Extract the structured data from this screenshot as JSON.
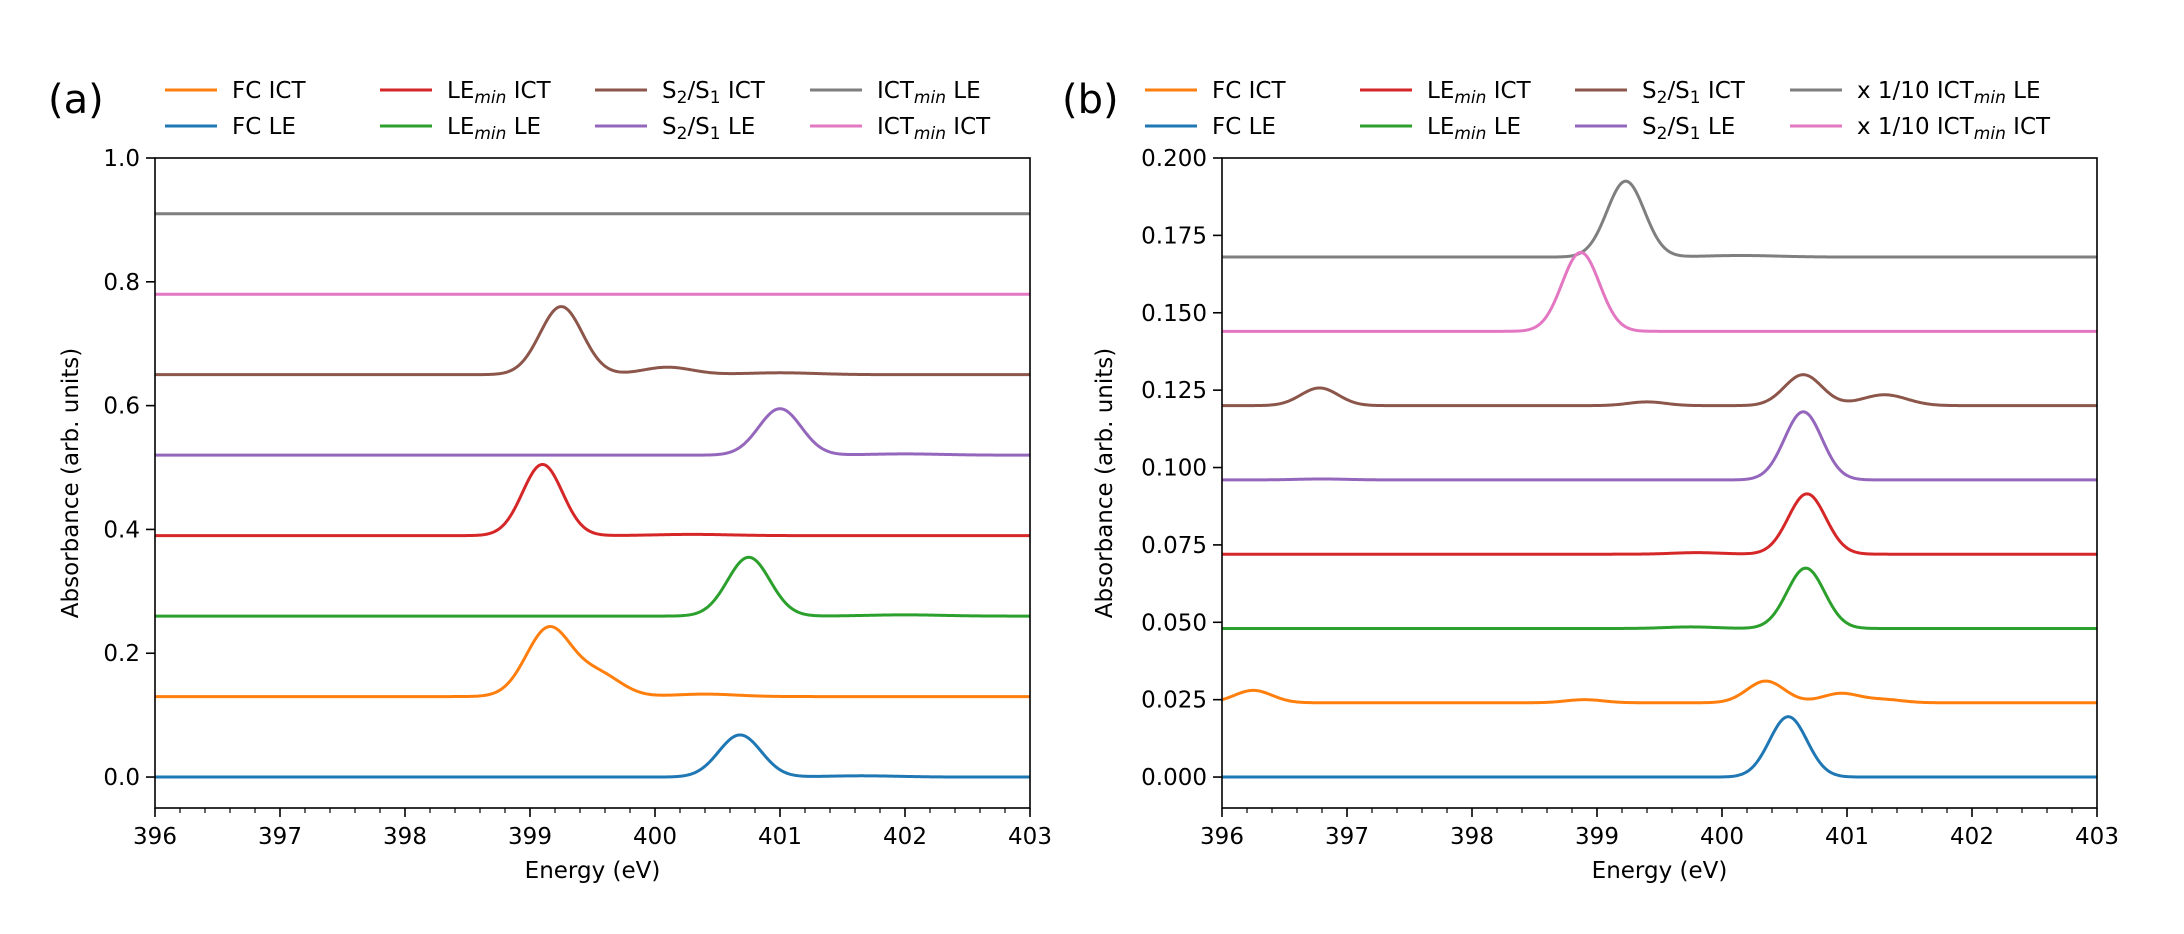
{
  "figure": {
    "panels": [
      "a",
      "b"
    ]
  },
  "chart_data": [
    {
      "type": "line",
      "panel_label": "(a)",
      "xlabel": "Energy (eV)",
      "ylabel": "Absorbance (arb. units)",
      "xlim": [
        396,
        403
      ],
      "ylim": [
        -0.05,
        1.0
      ],
      "xticks": [
        396,
        397,
        398,
        399,
        400,
        401,
        402,
        403
      ],
      "xtick_labels": [
        "396",
        "397",
        "398",
        "399",
        "400",
        "401",
        "402",
        "403"
      ],
      "yticks": [
        0.0,
        0.2,
        0.4,
        0.6,
        0.8,
        1.0
      ],
      "ytick_labels": [
        "0.0",
        "0.2",
        "0.4",
        "0.6",
        "0.8",
        "1.0"
      ],
      "legend": {
        "placement": "top",
        "columns": 4
      },
      "series": [
        {
          "name": "FC ICT",
          "label_parts": [
            [
              "FC ICT",
              ""
            ]
          ],
          "color": "#ff7f0e",
          "baseline": 0.13,
          "peaks": [
            [
              399.15,
              0.11,
              0.18
            ],
            [
              399.55,
              0.035,
              0.18
            ],
            [
              400.4,
              0.004,
              0.25
            ]
          ]
        },
        {
          "name": "FC LE",
          "label_parts": [
            [
              "FC LE",
              ""
            ]
          ],
          "color": "#1f77b4",
          "baseline": 0.0,
          "peaks": [
            [
              400.68,
              0.068,
              0.17
            ],
            [
              401.65,
              0.002,
              0.3
            ]
          ]
        },
        {
          "name": "LEmin ICT",
          "label_parts": [
            [
              "LE",
              ""
            ],
            [
              "min",
              "sub-i"
            ],
            [
              " ICT",
              ""
            ]
          ],
          "color": "#d62728",
          "baseline": 0.39,
          "peaks": [
            [
              399.1,
              0.115,
              0.16
            ],
            [
              400.3,
              0.002,
              0.3
            ]
          ]
        },
        {
          "name": "LEmin LE",
          "label_parts": [
            [
              "LE",
              ""
            ],
            [
              "min",
              "sub-i"
            ],
            [
              " LE",
              ""
            ]
          ],
          "color": "#2ca02c",
          "baseline": 0.26,
          "peaks": [
            [
              400.75,
              0.095,
              0.17
            ],
            [
              402.0,
              0.002,
              0.3
            ]
          ]
        },
        {
          "name": "S2/S1 ICT",
          "label_parts": [
            [
              "S",
              ""
            ],
            [
              "2",
              "sub"
            ],
            [
              "/S",
              ""
            ],
            [
              "1",
              "sub"
            ],
            [
              " ICT",
              ""
            ]
          ],
          "color": "#8c564b",
          "baseline": 0.65,
          "peaks": [
            [
              399.25,
              0.11,
              0.17
            ],
            [
              400.1,
              0.012,
              0.2
            ],
            [
              401.0,
              0.003,
              0.3
            ]
          ]
        },
        {
          "name": "S2/S1 LE",
          "label_parts": [
            [
              "S",
              ""
            ],
            [
              "2",
              "sub"
            ],
            [
              "/S",
              ""
            ],
            [
              "1",
              "sub"
            ],
            [
              " LE",
              ""
            ]
          ],
          "color": "#9467bd",
          "baseline": 0.52,
          "peaks": [
            [
              401.0,
              0.075,
              0.17
            ],
            [
              402.0,
              0.002,
              0.3
            ]
          ]
        },
        {
          "name": "ICTmin LE",
          "label_parts": [
            [
              "ICT",
              ""
            ],
            [
              "min",
              "sub-i"
            ],
            [
              " LE",
              ""
            ]
          ],
          "color": "#7f7f7f",
          "baseline": 0.91,
          "peaks": []
        },
        {
          "name": "ICTmin ICT",
          "label_parts": [
            [
              "ICT",
              ""
            ],
            [
              "min",
              "sub-i"
            ],
            [
              " ICT",
              ""
            ]
          ],
          "color": "#e377c2",
          "baseline": 0.78,
          "peaks": []
        }
      ]
    },
    {
      "type": "line",
      "panel_label": "(b)",
      "xlabel": "Energy (eV)",
      "ylabel": "Absorbance (arb. units)",
      "xlim": [
        396,
        403
      ],
      "ylim": [
        -0.01,
        0.2
      ],
      "xticks": [
        396,
        397,
        398,
        399,
        400,
        401,
        402,
        403
      ],
      "xtick_labels": [
        "396",
        "397",
        "398",
        "399",
        "400",
        "401",
        "402",
        "403"
      ],
      "yticks": [
        0.0,
        0.025,
        0.05,
        0.075,
        0.1,
        0.125,
        0.15,
        0.175,
        0.2
      ],
      "ytick_labels": [
        "0.000",
        "0.025",
        "0.050",
        "0.075",
        "0.100",
        "0.125",
        "0.150",
        "0.175",
        "0.200"
      ],
      "legend": {
        "placement": "top",
        "columns": 4
      },
      "series": [
        {
          "name": "FC ICT",
          "label_parts": [
            [
              "FC ICT",
              ""
            ]
          ],
          "color": "#ff7f0e",
          "baseline": 0.024,
          "peaks": [
            [
              396.25,
              0.004,
              0.15
            ],
            [
              398.9,
              0.001,
              0.15
            ],
            [
              400.35,
              0.007,
              0.15
            ],
            [
              400.95,
              0.003,
              0.15
            ],
            [
              401.3,
              0.001,
              0.15
            ]
          ]
        },
        {
          "name": "FC LE",
          "label_parts": [
            [
              "FC LE",
              ""
            ]
          ],
          "color": "#1f77b4",
          "baseline": 0.0,
          "peaks": [
            [
              400.53,
              0.0195,
              0.15
            ]
          ]
        },
        {
          "name": "LEmin ICT",
          "label_parts": [
            [
              "LE",
              ""
            ],
            [
              "min",
              "sub-i"
            ],
            [
              " ICT",
              ""
            ]
          ],
          "color": "#d62728",
          "baseline": 0.072,
          "peaks": [
            [
              400.68,
              0.0195,
              0.15
            ],
            [
              399.8,
              0.0005,
              0.2
            ]
          ]
        },
        {
          "name": "LEmin LE",
          "label_parts": [
            [
              "LE",
              ""
            ],
            [
              "min",
              "sub-i"
            ],
            [
              " LE",
              ""
            ]
          ],
          "color": "#2ca02c",
          "baseline": 0.048,
          "peaks": [
            [
              400.67,
              0.0195,
              0.15
            ],
            [
              399.75,
              0.0005,
              0.2
            ]
          ]
        },
        {
          "name": "S2/S1 ICT",
          "label_parts": [
            [
              "S",
              ""
            ],
            [
              "2",
              "sub"
            ],
            [
              "/S",
              ""
            ],
            [
              "1",
              "sub"
            ],
            [
              " ICT",
              ""
            ]
          ],
          "color": "#8c564b",
          "baseline": 0.12,
          "peaks": [
            [
              396.78,
              0.0057,
              0.15
            ],
            [
              399.4,
              0.0012,
              0.15
            ],
            [
              400.65,
              0.01,
              0.15
            ],
            [
              401.3,
              0.0035,
              0.18
            ]
          ]
        },
        {
          "name": "S2/S1 LE",
          "label_parts": [
            [
              "S",
              ""
            ],
            [
              "2",
              "sub"
            ],
            [
              "/S",
              ""
            ],
            [
              "1",
              "sub"
            ],
            [
              " LE",
              ""
            ]
          ],
          "color": "#9467bd",
          "baseline": 0.096,
          "peaks": [
            [
              400.65,
              0.022,
              0.15
            ],
            [
              396.8,
              0.0003,
              0.2
            ]
          ]
        },
        {
          "name": "x 1/10 ICTmin LE",
          "label_parts": [
            [
              "x 1/10 ICT",
              ""
            ],
            [
              "min",
              "sub-i"
            ],
            [
              " LE",
              ""
            ]
          ],
          "color": "#7f7f7f",
          "baseline": 0.168,
          "peaks": [
            [
              399.23,
              0.0245,
              0.15
            ],
            [
              400.15,
              0.0005,
              0.3
            ]
          ]
        },
        {
          "name": "x 1/10 ICTmin ICT",
          "label_parts": [
            [
              "x 1/10 ICT",
              ""
            ],
            [
              "min",
              "sub-i"
            ],
            [
              " ICT",
              ""
            ]
          ],
          "color": "#e377c2",
          "baseline": 0.144,
          "peaks": [
            [
              398.87,
              0.0255,
              0.15
            ]
          ]
        }
      ]
    }
  ]
}
